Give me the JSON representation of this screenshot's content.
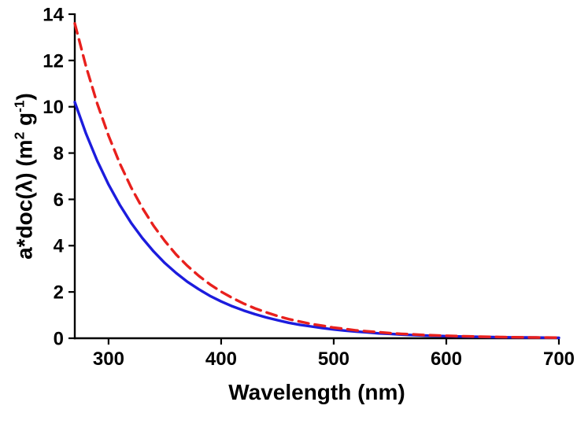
{
  "chart_data": {
    "type": "line",
    "title": "",
    "xlabel": "Wavelength (nm)",
    "ylabel": "a*doc(λ) (m² g⁻¹)",
    "xlim": [
      270,
      700
    ],
    "ylim": [
      0,
      14
    ],
    "x_ticks": [
      300,
      400,
      500,
      600,
      700
    ],
    "y_ticks": [
      0,
      2,
      4,
      6,
      8,
      10,
      12,
      14
    ],
    "grid": false,
    "legend_position": "none",
    "axes": {
      "spines": [
        "left",
        "bottom"
      ],
      "tick_direction": "out",
      "color": "#000000"
    },
    "x": [
      270,
      280,
      290,
      300,
      310,
      320,
      330,
      340,
      350,
      360,
      370,
      380,
      390,
      400,
      410,
      420,
      430,
      440,
      450,
      460,
      470,
      480,
      490,
      500,
      510,
      520,
      530,
      540,
      550,
      560,
      570,
      580,
      590,
      600,
      610,
      620,
      630,
      640,
      650,
      660,
      670,
      680,
      690,
      700
    ],
    "series": [
      {
        "name": "blue-solid-curve",
        "color": "#1c1cdd",
        "line_style": "solid",
        "dash": "",
        "values": [
          10.2,
          8.84,
          7.66,
          6.64,
          5.76,
          4.99,
          4.33,
          3.75,
          3.25,
          2.82,
          2.44,
          2.12,
          1.83,
          1.59,
          1.38,
          1.2,
          1.04,
          0.9,
          0.78,
          0.67,
          0.58,
          0.51,
          0.44,
          0.38,
          0.33,
          0.29,
          0.25,
          0.21,
          0.19,
          0.16,
          0.14,
          0.12,
          0.105,
          0.092,
          0.079,
          0.069,
          0.06,
          0.052,
          0.045,
          0.039,
          0.034,
          0.029,
          0.025,
          0.022
        ]
      },
      {
        "name": "red-dashed-curve",
        "color": "#e8201d",
        "line_style": "dashed",
        "dash": "13 8",
        "values": [
          13.6,
          11.74,
          10.13,
          8.75,
          7.55,
          6.52,
          5.63,
          4.86,
          4.2,
          3.62,
          3.13,
          2.7,
          2.33,
          2.01,
          1.74,
          1.5,
          1.29,
          1.12,
          0.96,
          0.83,
          0.72,
          0.62,
          0.54,
          0.46,
          0.4,
          0.34,
          0.3,
          0.26,
          0.22,
          0.19,
          0.17,
          0.14,
          0.125,
          0.108,
          0.093,
          0.08,
          0.069,
          0.06,
          0.052,
          0.045,
          0.039,
          0.033,
          0.029,
          0.025
        ]
      }
    ]
  },
  "labels": {
    "y_parts": [
      "a*doc(λ) (m",
      "2",
      " g",
      "-1",
      ")"
    ]
  }
}
